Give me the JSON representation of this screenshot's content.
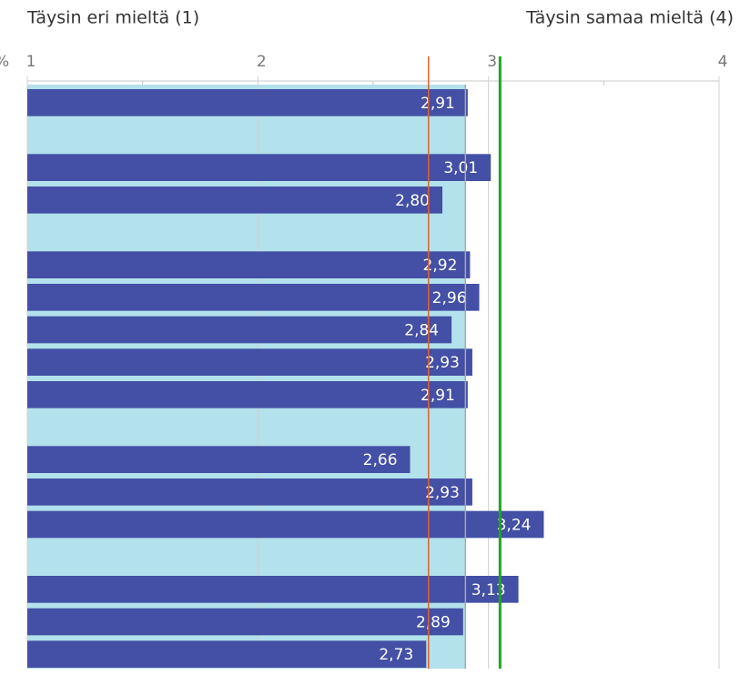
{
  "chart_data": {
    "type": "bar",
    "orientation": "horizontal",
    "left_label": "Täysin eri mieltä (1)",
    "right_label": "Täysin samaa mieltä (4)",
    "axis_unit": "%",
    "values": [
      2.91,
      null,
      3.01,
      2.8,
      null,
      2.92,
      2.96,
      2.84,
      2.93,
      2.91,
      null,
      2.66,
      2.93,
      3.24,
      null,
      3.13,
      2.89,
      2.73
    ],
    "value_labels": [
      "2,91",
      null,
      "3,01",
      "2,80",
      null,
      "2,92",
      "2,96",
      "2,84",
      "2,93",
      "2,91",
      null,
      "2,66",
      "2,93",
      "3,24",
      null,
      "3,13",
      "2,89",
      "2,73"
    ],
    "color": "#4350a5",
    "xlim": [
      1,
      4
    ],
    "xticks": [
      1,
      2,
      3,
      4
    ],
    "minor_ticks": [
      1.5,
      2.5,
      3.5
    ],
    "grid": true,
    "band": {
      "from": 1,
      "to": 2.9,
      "color": "#b3e1ec"
    },
    "reference_lines": [
      {
        "value": 2.9,
        "color": "#a8a8a8"
      },
      {
        "value": 2.74,
        "color": "#e0622e"
      },
      {
        "value": 3.05,
        "color": "#1fa51f"
      }
    ]
  }
}
